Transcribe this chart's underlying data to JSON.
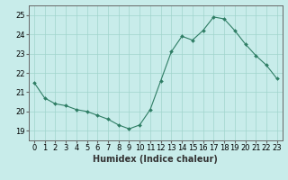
{
  "title": "",
  "xlabel": "Humidex (Indice chaleur)",
  "ylabel": "",
  "x": [
    0,
    1,
    2,
    3,
    4,
    5,
    6,
    7,
    8,
    9,
    10,
    11,
    12,
    13,
    14,
    15,
    16,
    17,
    18,
    19,
    20,
    21,
    22,
    23
  ],
  "y": [
    21.5,
    20.7,
    20.4,
    20.3,
    20.1,
    20.0,
    19.8,
    19.6,
    19.3,
    19.1,
    19.3,
    20.1,
    21.6,
    23.1,
    23.9,
    23.7,
    24.2,
    24.9,
    24.8,
    24.2,
    23.5,
    22.9,
    22.4,
    21.7
  ],
  "line_color": "#2e7d64",
  "marker_color": "#2e7d64",
  "bg_color": "#c8ecea",
  "grid_color": "#a0d4cc",
  "axis_color": "#666666",
  "ylim": [
    18.5,
    25.5
  ],
  "xlim": [
    -0.5,
    23.5
  ],
  "yticks": [
    19,
    20,
    21,
    22,
    23,
    24,
    25
  ],
  "xticks": [
    0,
    1,
    2,
    3,
    4,
    5,
    6,
    7,
    8,
    9,
    10,
    11,
    12,
    13,
    14,
    15,
    16,
    17,
    18,
    19,
    20,
    21,
    22,
    23
  ],
  "xlabel_fontsize": 7,
  "tick_fontsize": 6
}
